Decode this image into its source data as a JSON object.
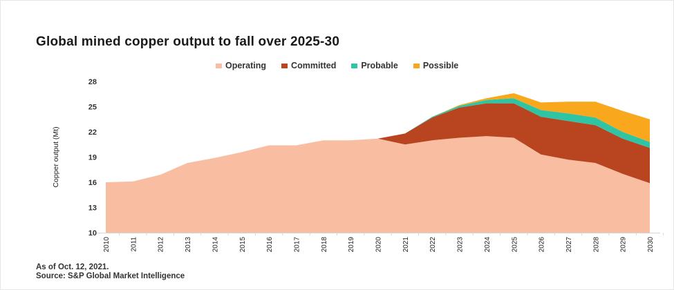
{
  "chart_data": {
    "type": "area",
    "stacked": true,
    "title": "Global mined copper output to fall over 2025-30",
    "xlabel": "",
    "ylabel": "Copper output (Mt)",
    "ylim": [
      10,
      28
    ],
    "yticks": [
      10,
      13,
      16,
      19,
      22,
      25,
      28
    ],
    "grid": false,
    "legend_position": "top",
    "x": [
      "2010",
      "2011",
      "2012",
      "2013",
      "2014",
      "2015",
      "2016",
      "2017",
      "2018",
      "2019",
      "2020",
      "2021",
      "2022",
      "2023",
      "2024",
      "2025",
      "2026",
      "2027",
      "2028",
      "2029",
      "2030"
    ],
    "series": [
      {
        "name": "Operating",
        "color": "#f9bea1",
        "values": [
          16.0,
          16.1,
          16.9,
          18.3,
          18.9,
          19.6,
          20.4,
          20.4,
          21.0,
          21.0,
          21.2,
          20.5,
          21.0,
          21.3,
          21.5,
          21.3,
          19.3,
          18.7,
          18.3,
          17.0,
          15.9
        ]
      },
      {
        "name": "Committed",
        "color": "#b94520",
        "values": [
          0,
          0,
          0,
          0,
          0,
          0,
          0,
          0,
          0,
          0,
          0,
          1.3,
          2.7,
          3.6,
          3.9,
          4.1,
          4.5,
          4.6,
          4.5,
          4.2,
          4.2
        ]
      },
      {
        "name": "Probable",
        "color": "#2ec4a4",
        "values": [
          0,
          0,
          0,
          0,
          0,
          0,
          0,
          0,
          0,
          0,
          0,
          0,
          0.1,
          0.2,
          0.4,
          0.6,
          0.8,
          0.9,
          0.9,
          0.8,
          0.7
        ]
      },
      {
        "name": "Possible",
        "color": "#f9a81e",
        "values": [
          0,
          0,
          0,
          0,
          0,
          0,
          0,
          0,
          0,
          0,
          0,
          0,
          0,
          0.1,
          0.2,
          0.6,
          0.9,
          1.4,
          1.9,
          2.5,
          2.7
        ]
      }
    ]
  },
  "notes": {
    "as_of": "As of Oct. 12, 2021.",
    "source": "Source: S&P Global Market Intelligence"
  }
}
